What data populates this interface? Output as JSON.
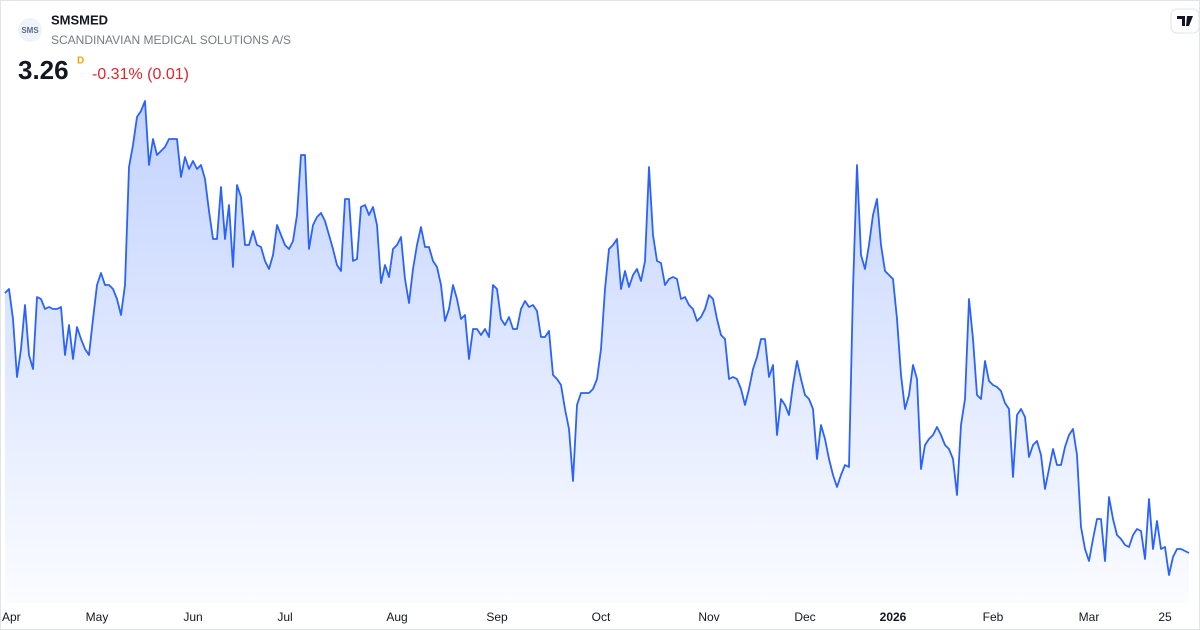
{
  "chart_data": {
    "type": "area",
    "symbol": "SMSMED",
    "logo_text": "SMS",
    "company": "SCANDINAVIAN MEDICAL SOLUTIONS A/S",
    "last_price": 3.26,
    "interval": "D",
    "change": "-0.31% (0.01)",
    "color": "#2962ff",
    "change_color": "#e0262f",
    "ylim": [
      3.0,
      5.6
    ],
    "xticks": [
      {
        "value": 2,
        "label": "Apr"
      },
      {
        "value": 23,
        "label": "May"
      },
      {
        "value": 47,
        "label": "Jun"
      },
      {
        "value": 70,
        "label": "Jul"
      },
      {
        "value": 98,
        "label": "Aug"
      },
      {
        "value": 123,
        "label": "Sep"
      },
      {
        "value": 149,
        "label": "Oct"
      },
      {
        "value": 176,
        "label": "Nov"
      },
      {
        "value": 200,
        "label": "Dec"
      },
      {
        "value": 222,
        "label": "2026"
      },
      {
        "value": 247,
        "label": "Feb"
      },
      {
        "value": 271,
        "label": "Mar"
      },
      {
        "value": 290,
        "label": "25"
      }
    ],
    "values": [
      4.56,
      4.58,
      4.43,
      4.14,
      4.28,
      4.5,
      4.25,
      4.18,
      4.54,
      4.53,
      4.48,
      4.49,
      4.48,
      4.48,
      4.49,
      4.25,
      4.4,
      4.23,
      4.39,
      4.33,
      4.28,
      4.25,
      4.43,
      4.6,
      4.66,
      4.6,
      4.6,
      4.58,
      4.53,
      4.45,
      4.6,
      5.19,
      5.3,
      5.44,
      5.47,
      5.52,
      5.2,
      5.33,
      5.25,
      5.27,
      5.29,
      5.33,
      5.33,
      5.33,
      5.14,
      5.24,
      5.18,
      5.22,
      5.18,
      5.2,
      5.13,
      4.97,
      4.83,
      4.83,
      5.09,
      4.83,
      5.0,
      4.69,
      5.1,
      5.04,
      4.8,
      4.8,
      4.87,
      4.8,
      4.79,
      4.72,
      4.68,
      4.75,
      4.9,
      4.85,
      4.8,
      4.78,
      4.82,
      4.95,
      5.25,
      5.25,
      4.78,
      4.9,
      4.94,
      4.96,
      4.92,
      4.85,
      4.78,
      4.7,
      4.67,
      5.03,
      5.03,
      4.72,
      4.73,
      4.99,
      5.0,
      4.95,
      4.99,
      4.9,
      4.61,
      4.7,
      4.64,
      4.78,
      4.8,
      4.84,
      4.63,
      4.51,
      4.68,
      4.8,
      4.89,
      4.79,
      4.79,
      4.72,
      4.69,
      4.6,
      4.42,
      4.48,
      4.6,
      4.53,
      4.43,
      4.45,
      4.23,
      4.38,
      4.38,
      4.35,
      4.38,
      4.34,
      4.6,
      4.58,
      4.43,
      4.4,
      4.44,
      4.38,
      4.38,
      4.48,
      4.52,
      4.49,
      4.5,
      4.47,
      4.34,
      4.34,
      4.37,
      4.15,
      4.13,
      4.1,
      3.98,
      3.88,
      3.62,
      4.0,
      4.06,
      4.06,
      4.06,
      4.08,
      4.13,
      4.28,
      4.58,
      4.78,
      4.8,
      4.83,
      4.58,
      4.67,
      4.59,
      4.65,
      4.68,
      4.62,
      4.72,
      5.19,
      4.85,
      4.72,
      4.71,
      4.6,
      4.63,
      4.64,
      4.63,
      4.53,
      4.54,
      4.5,
      4.48,
      4.42,
      4.44,
      4.48,
      4.55,
      4.53,
      4.43,
      4.35,
      4.33,
      4.13,
      4.14,
      4.13,
      4.08,
      4.0,
      4.08,
      4.18,
      4.24,
      4.33,
      4.33,
      4.14,
      4.2,
      3.85,
      4.03,
      4.0,
      3.95,
      4.1,
      4.22,
      4.13,
      4.05,
      4.03,
      3.98,
      3.73,
      3.9,
      3.83,
      3.73,
      3.65,
      3.59,
      3.65,
      3.7,
      3.69,
      4.58,
      5.2,
      4.75,
      4.68,
      4.8,
      4.95,
      5.03,
      4.8,
      4.67,
      4.65,
      4.63,
      4.43,
      4.15,
      3.98,
      4.05,
      4.2,
      4.13,
      3.68,
      3.8,
      3.83,
      3.85,
      3.89,
      3.85,
      3.8,
      3.78,
      3.73,
      3.55,
      3.9,
      4.03,
      4.53,
      4.33,
      4.05,
      4.03,
      4.22,
      4.12,
      4.1,
      4.09,
      4.07,
      4.01,
      3.98,
      3.64,
      3.95,
      3.98,
      3.94,
      3.74,
      3.8,
      3.82,
      3.75,
      3.58,
      3.68,
      3.78,
      3.7,
      3.7,
      3.79,
      3.85,
      3.88,
      3.75,
      3.39,
      3.28,
      3.22,
      3.33,
      3.43,
      3.43,
      3.22,
      3.54,
      3.43,
      3.35,
      3.33,
      3.3,
      3.29,
      3.35,
      3.38,
      3.37,
      3.23,
      3.53,
      3.28,
      3.42,
      3.28,
      3.29,
      3.15,
      3.24,
      3.28,
      3.28,
      3.27,
      3.26
    ]
  }
}
